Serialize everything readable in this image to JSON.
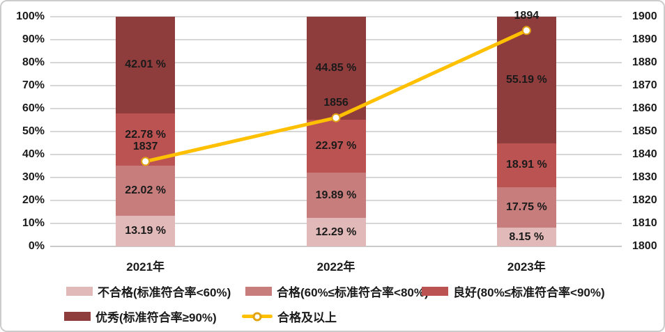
{
  "chart_data": {
    "type": "stacked-bar-line",
    "title": "",
    "categories": [
      "2021年",
      "2022年",
      "2023年"
    ],
    "stack_series": [
      {
        "name": "不合格(标准符合率<60%)",
        "color": "#E2B9B9",
        "values": [
          13.19,
          12.29,
          8.15
        ],
        "labels": [
          "13.19 %",
          "12.29 %",
          "8.15 %"
        ]
      },
      {
        "name": "合格(60%≤标准符合率<80%)",
        "color": "#C87D7D",
        "values": [
          22.02,
          19.89,
          17.75
        ],
        "labels": [
          "22.02 %",
          "19.89 %",
          "17.75 %"
        ]
      },
      {
        "name": "良好(80%≤标准符合率<90%)",
        "color": "#BC5353",
        "values": [
          22.78,
          22.97,
          18.91
        ],
        "labels": [
          "22.78 %",
          "22.97 %",
          "18.91 %"
        ]
      },
      {
        "name": "优秀(标准符合率≥90%)",
        "color": "#8E3C3C",
        "values": [
          42.01,
          44.85,
          55.19
        ],
        "labels": [
          "42.01 %",
          "44.85 %",
          "55.19 %"
        ]
      }
    ],
    "line_series": {
      "name": "合格及以上",
      "color": "#FFC000",
      "marker_fill": "#FFFFFF",
      "marker_stroke": "#E2A312",
      "axis": "right",
      "values": [
        1837,
        1856,
        1894
      ],
      "labels": [
        "1837",
        "1856",
        "1894"
      ]
    },
    "left_axis": {
      "min": 0,
      "max": 100,
      "ticks": [
        "0%",
        "10%",
        "20%",
        "30%",
        "40%",
        "50%",
        "60%",
        "70%",
        "80%",
        "90%",
        "100%"
      ]
    },
    "right_axis": {
      "min": 1800,
      "max": 1900,
      "ticks": [
        "1800",
        "1810",
        "1820",
        "1830",
        "1840",
        "1850",
        "1860",
        "1870",
        "1880",
        "1890",
        "1900"
      ]
    },
    "grid": {
      "show": true,
      "color": "#D7D7D7"
    },
    "legend_position": "bottom",
    "label_color": "#1A1A1A"
  }
}
